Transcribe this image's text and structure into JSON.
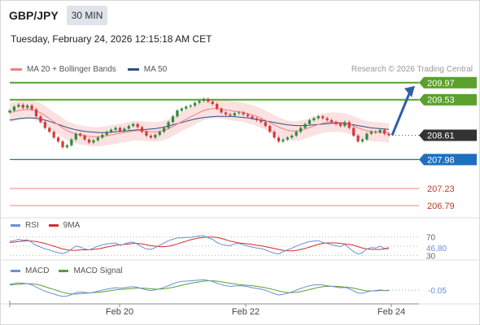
{
  "header": {
    "pair": "GBP/JPY",
    "timeframe": "30 MIN"
  },
  "timestamp": "Tuesday, February 24, 2026 12:15:18 AM CET",
  "legend": {
    "ma20_label": "MA 20 + Bollinger Bands",
    "ma50_label": "MA 50",
    "ma20_color": "#f08080",
    "ma50_color": "#2d4f8a"
  },
  "credit": "Research © 2026 Trading Central",
  "colors": {
    "resistance": "#5aa02c",
    "support": "#1f6fc0",
    "target_line": "#f08080",
    "up": "#2e8b3d",
    "down": "#d63a3a",
    "arrow": "#2d5fa8",
    "current": "#333333"
  },
  "rsi_legend": {
    "rsi_label": "RSI",
    "ma_label": "9MA",
    "rsi_color": "#6b8fd6",
    "ma_color": "#d62b2b"
  },
  "macd_legend": {
    "macd_label": "MACD",
    "signal_label": "MACD Signal",
    "macd_color": "#6b8fd6",
    "signal_color": "#5aa02c"
  },
  "chart_data": [
    {
      "type": "candlestick",
      "title": "GBP/JPY 30 MIN",
      "ylim": [
        206.6,
        210.05
      ],
      "x_ticks": [
        "Feb 20",
        "Feb 22",
        "Feb 24"
      ],
      "current_price": 208.61,
      "levels": [
        {
          "value": 209.97,
          "kind": "resistance",
          "label": "209.97"
        },
        {
          "value": 209.53,
          "kind": "resistance",
          "label": "209.53"
        },
        {
          "value": 208.61,
          "kind": "current",
          "label": "208.61"
        },
        {
          "value": 207.98,
          "kind": "support",
          "label": "207.98"
        },
        {
          "value": 207.23,
          "kind": "target",
          "label": "207.23"
        },
        {
          "value": 206.79,
          "kind": "target",
          "label": "206.79"
        }
      ],
      "close": [
        209.25,
        209.35,
        209.4,
        209.32,
        209.38,
        209.28,
        209.1,
        208.95,
        208.8,
        208.7,
        208.55,
        208.45,
        208.3,
        208.35,
        208.5,
        208.65,
        208.6,
        208.5,
        208.42,
        208.48,
        208.55,
        208.62,
        208.7,
        208.75,
        208.8,
        208.72,
        208.78,
        208.85,
        208.9,
        208.82,
        208.7,
        208.6,
        208.55,
        208.62,
        208.7,
        208.8,
        208.95,
        209.1,
        209.25,
        209.3,
        209.35,
        209.38,
        209.45,
        209.5,
        209.55,
        209.48,
        209.42,
        209.3,
        209.2,
        209.15,
        209.12,
        209.18,
        209.2,
        209.15,
        209.1,
        209.05,
        209.0,
        208.95,
        208.85,
        208.7,
        208.55,
        208.45,
        208.5,
        208.55,
        208.6,
        208.7,
        208.8,
        208.9,
        209.0,
        209.05,
        209.1,
        209.05,
        209.0,
        208.95,
        208.9,
        208.85,
        208.95,
        208.8,
        208.6,
        208.45,
        208.5,
        208.65,
        208.7,
        208.68,
        208.75,
        208.65,
        208.61
      ],
      "open": [
        209.2,
        209.25,
        209.35,
        209.4,
        209.32,
        209.38,
        209.28,
        209.1,
        208.95,
        208.8,
        208.7,
        208.55,
        208.45,
        208.3,
        208.35,
        208.5,
        208.65,
        208.6,
        208.5,
        208.42,
        208.48,
        208.55,
        208.62,
        208.7,
        208.75,
        208.8,
        208.72,
        208.78,
        208.85,
        208.9,
        208.82,
        208.7,
        208.6,
        208.55,
        208.62,
        208.7,
        208.8,
        208.95,
        209.1,
        209.25,
        209.3,
        209.35,
        209.38,
        209.45,
        209.5,
        209.55,
        209.48,
        209.42,
        209.3,
        209.2,
        209.15,
        209.12,
        209.18,
        209.2,
        209.15,
        209.1,
        209.05,
        209.0,
        208.95,
        208.85,
        208.7,
        208.55,
        208.45,
        208.5,
        208.55,
        208.6,
        208.7,
        208.8,
        208.9,
        209.0,
        209.05,
        209.1,
        209.05,
        209.0,
        208.95,
        208.9,
        208.85,
        208.95,
        208.8,
        208.6,
        208.45,
        208.5,
        208.65,
        208.7,
        208.68,
        208.75,
        208.65
      ],
      "ma20": [
        209.2,
        209.22,
        209.25,
        209.27,
        209.28,
        209.27,
        209.24,
        209.19,
        209.12,
        209.04,
        208.96,
        208.88,
        208.8,
        208.73,
        208.68,
        208.64,
        208.62,
        208.6,
        208.58,
        208.57,
        208.57,
        208.58,
        208.6,
        208.62,
        208.64,
        208.66,
        208.68,
        208.7,
        208.72,
        208.73,
        208.72,
        208.71,
        208.7,
        208.7,
        208.71,
        208.74,
        208.78,
        208.84,
        208.9,
        208.96,
        209.02,
        209.08,
        209.14,
        209.2,
        209.25,
        209.28,
        209.3,
        209.3,
        209.29,
        209.27,
        209.25,
        209.23,
        209.22,
        209.2,
        209.17,
        209.14,
        209.1,
        209.05,
        209.0,
        208.94,
        208.88,
        208.82,
        208.78,
        208.74,
        208.72,
        208.72,
        208.74,
        208.77,
        208.81,
        208.85,
        208.89,
        208.92,
        208.94,
        208.95,
        208.95,
        208.94,
        208.93,
        208.9,
        208.85,
        208.8,
        208.76,
        208.73,
        208.71,
        208.7,
        208.69,
        208.68,
        208.67
      ],
      "ma50": [
        209.0,
        209.02,
        209.04,
        209.05,
        209.06,
        209.06,
        209.05,
        209.03,
        209.0,
        208.97,
        208.93,
        208.89,
        208.85,
        208.81,
        208.78,
        208.75,
        208.73,
        208.71,
        208.7,
        208.69,
        208.68,
        208.68,
        208.68,
        208.69,
        208.7,
        208.71,
        208.72,
        208.73,
        208.74,
        208.75,
        208.75,
        208.76,
        208.77,
        208.78,
        208.8,
        208.82,
        208.85,
        208.88,
        208.91,
        208.94,
        208.97,
        209.0,
        209.03,
        209.05,
        209.07,
        209.08,
        209.09,
        209.1,
        209.1,
        209.1,
        209.1,
        209.09,
        209.08,
        209.07,
        209.06,
        209.04,
        209.02,
        209.0,
        208.98,
        208.96,
        208.94,
        208.92,
        208.9,
        208.88,
        208.87,
        208.86,
        208.86,
        208.86,
        208.87,
        208.88,
        208.89,
        208.9,
        208.91,
        208.92,
        208.92,
        208.92,
        208.91,
        208.9,
        208.88,
        208.86,
        208.84,
        208.82,
        208.8,
        208.79,
        208.78,
        208.77,
        208.76
      ],
      "projection": {
        "from": 208.61,
        "to": 209.97
      }
    },
    {
      "type": "line",
      "title": "RSI",
      "ylim": [
        20,
        80
      ],
      "levels": [
        70,
        50,
        30
      ],
      "current_label": "46.80",
      "series": [
        {
          "name": "RSI",
          "values": [
            60,
            62,
            65,
            63,
            64,
            58,
            52,
            48,
            44,
            42,
            38,
            36,
            34,
            37,
            44,
            50,
            48,
            44,
            42,
            46,
            50,
            53,
            55,
            56,
            57,
            52,
            55,
            58,
            59,
            54,
            48,
            44,
            43,
            47,
            52,
            57,
            62,
            65,
            68,
            68,
            69,
            69,
            71,
            72,
            73,
            68,
            65,
            58,
            54,
            52,
            51,
            55,
            56,
            53,
            50,
            48,
            46,
            45,
            42,
            38,
            35,
            33,
            38,
            42,
            46,
            50,
            54,
            57,
            60,
            61,
            62,
            58,
            56,
            53,
            51,
            49,
            54,
            46,
            38,
            33,
            36,
            44,
            47,
            46,
            50,
            45,
            46.8
          ]
        },
        {
          "name": "9MA",
          "values": [
            58,
            59,
            60,
            61,
            62,
            61,
            60,
            58,
            56,
            53,
            50,
            47,
            44,
            42,
            41,
            41,
            42,
            42,
            42,
            43,
            44,
            46,
            48,
            50,
            52,
            53,
            54,
            55,
            56,
            56,
            55,
            53,
            51,
            50,
            49,
            49,
            50,
            52,
            55,
            58,
            61,
            64,
            66,
            68,
            69,
            70,
            70,
            69,
            67,
            64,
            61,
            59,
            57,
            56,
            55,
            54,
            52,
            51,
            49,
            47,
            45,
            43,
            41,
            40,
            40,
            41,
            43,
            45,
            48,
            51,
            54,
            56,
            57,
            57,
            57,
            56,
            55,
            54,
            52,
            49,
            46,
            44,
            43,
            43,
            43,
            44,
            45
          ]
        }
      ]
    },
    {
      "type": "line",
      "title": "MACD",
      "ylim": [
        -0.35,
        0.35
      ],
      "current_label": "-0.05",
      "series": [
        {
          "name": "MACD",
          "values": [
            0.12,
            0.14,
            0.16,
            0.15,
            0.14,
            0.1,
            0.04,
            -0.02,
            -0.08,
            -0.12,
            -0.16,
            -0.2,
            -0.23,
            -0.22,
            -0.18,
            -0.12,
            -0.1,
            -0.11,
            -0.13,
            -0.11,
            -0.08,
            -0.05,
            -0.02,
            0.0,
            0.02,
            0.01,
            0.02,
            0.04,
            0.05,
            0.03,
            -0.01,
            -0.04,
            -0.06,
            -0.04,
            -0.01,
            0.03,
            0.08,
            0.13,
            0.18,
            0.2,
            0.21,
            0.22,
            0.23,
            0.24,
            0.25,
            0.23,
            0.2,
            0.15,
            0.11,
            0.08,
            0.06,
            0.07,
            0.08,
            0.07,
            0.05,
            0.02,
            0.0,
            -0.02,
            -0.05,
            -0.1,
            -0.15,
            -0.19,
            -0.17,
            -0.14,
            -0.1,
            -0.05,
            0.0,
            0.04,
            0.08,
            0.1,
            0.11,
            0.1,
            0.08,
            0.06,
            0.04,
            0.02,
            0.03,
            -0.01,
            -0.07,
            -0.13,
            -0.14,
            -0.1,
            -0.07,
            -0.06,
            -0.04,
            -0.06,
            -0.05
          ]
        },
        {
          "name": "MACD Signal",
          "values": [
            0.1,
            0.11,
            0.12,
            0.13,
            0.14,
            0.13,
            0.12,
            0.09,
            0.05,
            0.01,
            -0.03,
            -0.07,
            -0.11,
            -0.14,
            -0.16,
            -0.16,
            -0.15,
            -0.14,
            -0.13,
            -0.12,
            -0.11,
            -0.1,
            -0.08,
            -0.06,
            -0.04,
            -0.03,
            -0.02,
            -0.01,
            0.0,
            0.01,
            0.01,
            0.0,
            -0.01,
            -0.02,
            -0.02,
            -0.01,
            0.01,
            0.03,
            0.06,
            0.09,
            0.12,
            0.15,
            0.17,
            0.19,
            0.21,
            0.22,
            0.22,
            0.21,
            0.19,
            0.17,
            0.15,
            0.13,
            0.11,
            0.1,
            0.09,
            0.08,
            0.06,
            0.04,
            0.02,
            -0.01,
            -0.04,
            -0.07,
            -0.1,
            -0.12,
            -0.12,
            -0.11,
            -0.09,
            -0.06,
            -0.03,
            0.0,
            0.03,
            0.05,
            0.06,
            0.06,
            0.06,
            0.05,
            0.04,
            0.03,
            0.01,
            -0.02,
            -0.05,
            -0.07,
            -0.07,
            -0.07,
            -0.06,
            -0.06,
            -0.06
          ]
        }
      ]
    }
  ]
}
